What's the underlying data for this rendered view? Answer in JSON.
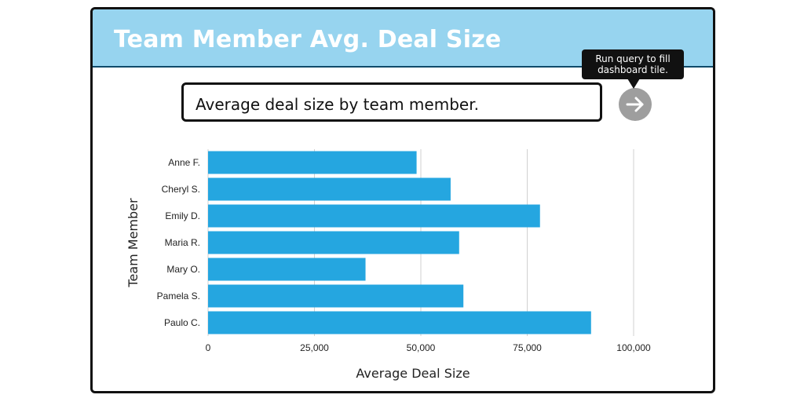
{
  "card": {
    "title": "Team Member Avg. Deal Size"
  },
  "query": {
    "text": "Average deal size by team member.",
    "run_button_icon": "arrow-right-icon",
    "tooltip": [
      "Run query to fill",
      "dashboard tile."
    ]
  },
  "colors": {
    "header": "#97d4ef",
    "bar": "#25a6e0",
    "run_button": "#9e9e9e"
  },
  "chart_data": {
    "type": "bar",
    "orientation": "horizontal",
    "categories": [
      "Anne F.",
      "Cheryl S.",
      "Emily D.",
      "Maria R.",
      "Mary O.",
      "Pamela S.",
      "Paulo C."
    ],
    "values": [
      49000,
      57000,
      78000,
      59000,
      37000,
      60000,
      90000
    ],
    "xlabel": "Average Deal Size",
    "ylabel": "Team Member",
    "xlim": [
      0,
      100000
    ],
    "xticks": [
      0,
      25000,
      50000,
      75000,
      100000
    ],
    "xtick_labels": [
      "0",
      "25,000",
      "50,000",
      "75,000",
      "100,000"
    ],
    "grid": "vertical",
    "legend": "none"
  }
}
